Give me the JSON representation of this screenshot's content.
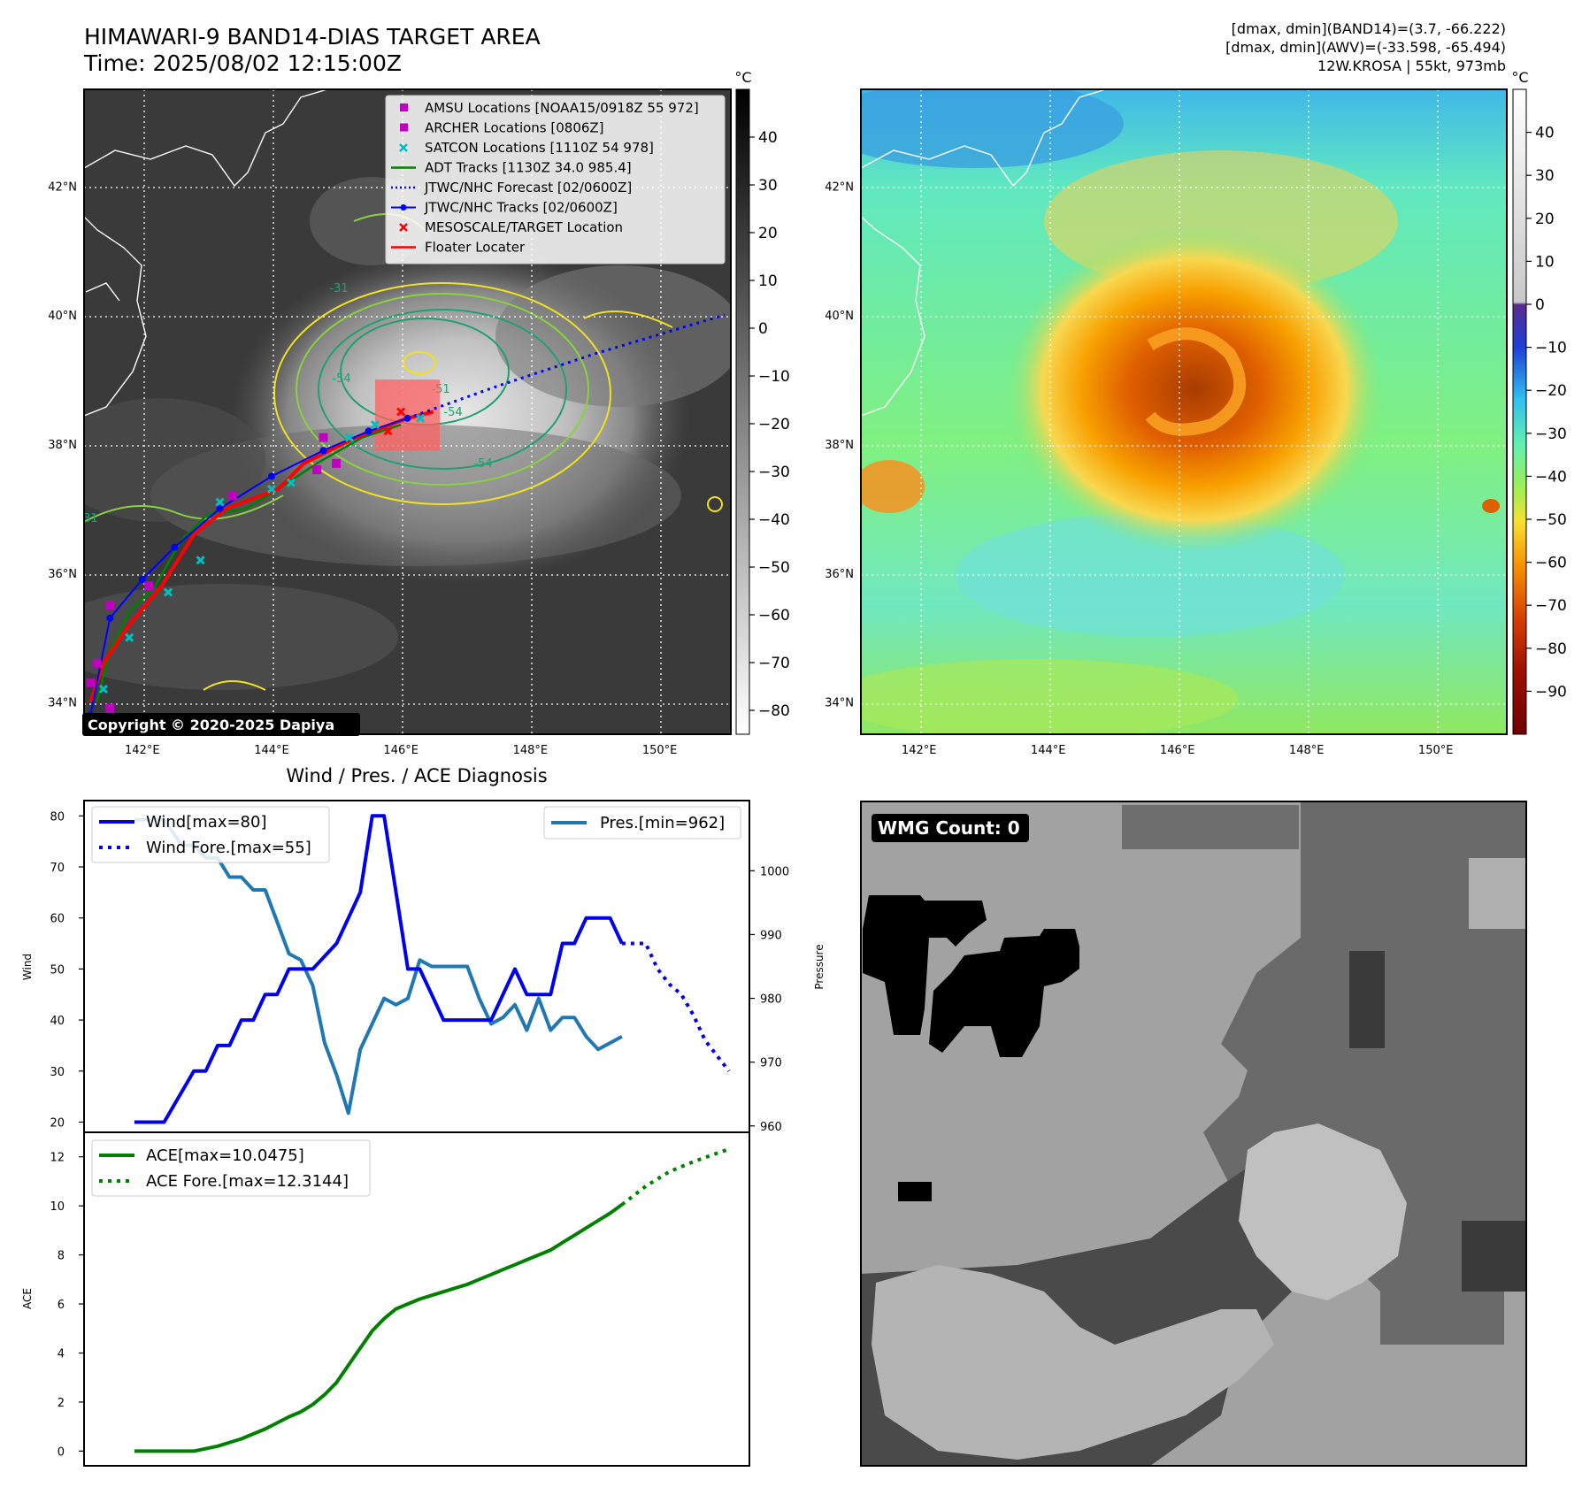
{
  "header": {
    "title_line1": "HIMAWARI-9 BAND14-DIAS TARGET AREA",
    "title_line2": "Time: 2025/08/02 12:15:00Z",
    "info_line1": "[dmax, dmin](BAND14)=(3.7, -66.222)",
    "info_line2": "[dmax, dmin](AWV)=(-33.598, -65.494)",
    "info_line3": "12W.KROSA | 55kt, 973mb"
  },
  "map_axes": {
    "lon_ticks": [
      "142°E",
      "144°E",
      "146°E",
      "148°E",
      "150°E"
    ],
    "lat_ticks": [
      "42°N",
      "40°N",
      "38°N",
      "36°N",
      "34°N"
    ],
    "lon_range": [
      141.1,
      151.1
    ],
    "lat_range": [
      33.5,
      43.5
    ],
    "grid": true
  },
  "ir_panel": {
    "copyright": "Copyright © 2020-2025 Dapiya",
    "colorbar_unit": "°C",
    "colorbar_ticks": [
      "40",
      "30",
      "20",
      "10",
      "0",
      "−10",
      "−20",
      "−30",
      "−40",
      "−50",
      "−60",
      "−70",
      "−80"
    ],
    "colorbar_range": [
      -85,
      50
    ],
    "contour_labels": [
      "-31",
      "-54",
      "-54",
      "-54",
      "-51",
      "-31"
    ],
    "legend": [
      {
        "label": "AMSU Locations [NOAA15/0918Z 55 972]",
        "color": "#c000c0",
        "marker": "square"
      },
      {
        "label": "ARCHER Locations [0806Z]",
        "color": "#c000c0",
        "marker": "square"
      },
      {
        "label": "SATCON Locations [1110Z 54 978]",
        "color": "#00bfbf",
        "marker": "x"
      },
      {
        "label": "ADT Tracks [1130Z 34.0 985.4]",
        "color": "#008000",
        "marker": "line"
      },
      {
        "label": "JTWC/NHC Forecast [02/0600Z]",
        "color": "#0000ff",
        "marker": "dotted"
      },
      {
        "label": "JTWC/NHC Tracks [02/0600Z]",
        "color": "#0000ff",
        "marker": "line-dot"
      },
      {
        "label": "MESOSCALE/TARGET Location",
        "color": "#ff0000",
        "marker": "x"
      },
      {
        "label": "Floater Locater",
        "color": "#ff0000",
        "marker": "line"
      }
    ],
    "jtwc_track": [
      [
        141.2,
        33.8
      ],
      [
        141.5,
        35.3
      ],
      [
        142.0,
        35.9
      ],
      [
        142.5,
        36.4
      ],
      [
        143.2,
        37.0
      ],
      [
        144.0,
        37.5
      ],
      [
        144.8,
        37.9
      ],
      [
        145.5,
        38.2
      ],
      [
        146.1,
        38.4
      ]
    ],
    "jtwc_forecast": [
      [
        146.1,
        38.4
      ],
      [
        147.5,
        38.9
      ],
      [
        149.0,
        39.4
      ],
      [
        151.0,
        40.0
      ]
    ],
    "adt_track": [
      [
        141.3,
        34.0
      ],
      [
        141.5,
        34.8
      ],
      [
        141.8,
        35.4
      ],
      [
        142.2,
        35.8
      ],
      [
        142.6,
        36.5
      ],
      [
        143.0,
        36.9
      ],
      [
        143.6,
        37.0
      ],
      [
        144.1,
        37.3
      ],
      [
        144.7,
        37.7
      ],
      [
        145.4,
        38.1
      ],
      [
        146.0,
        38.3
      ]
    ],
    "floater_track": [
      [
        141.2,
        34.0
      ],
      [
        141.4,
        34.6
      ],
      [
        141.8,
        35.2
      ],
      [
        142.3,
        35.8
      ],
      [
        142.8,
        36.6
      ],
      [
        143.3,
        37.0
      ],
      [
        144.1,
        37.3
      ],
      [
        144.5,
        37.7
      ],
      [
        145.3,
        38.1
      ],
      [
        146.1,
        38.4
      ],
      [
        146.5,
        38.5
      ]
    ],
    "amsu_points": [
      [
        141.2,
        34.3
      ],
      [
        141.5,
        35.5
      ],
      [
        142.1,
        35.8
      ],
      [
        143.4,
        37.2
      ],
      [
        144.7,
        37.6
      ],
      [
        145.0,
        37.7
      ],
      [
        144.8,
        38.1
      ],
      [
        141.5,
        33.9
      ],
      [
        141.3,
        34.6
      ]
    ],
    "satcon_points": [
      [
        141.4,
        34.2
      ],
      [
        141.8,
        35.0
      ],
      [
        142.4,
        35.7
      ],
      [
        142.9,
        36.2
      ],
      [
        143.2,
        37.1
      ],
      [
        144.0,
        37.3
      ],
      [
        144.3,
        37.4
      ],
      [
        145.2,
        38.1
      ],
      [
        145.6,
        38.3
      ],
      [
        146.3,
        38.4
      ],
      [
        141.3,
        33.7
      ]
    ],
    "target_points": [
      [
        146.0,
        38.5
      ],
      [
        145.8,
        38.2
      ]
    ],
    "target_box": {
      "lon": [
        145.6,
        146.6
      ],
      "lat": [
        37.9,
        39.0
      ]
    }
  },
  "awv_panel": {
    "colorbar_unit": "°C",
    "colorbar_ticks": [
      "40",
      "30",
      "20",
      "10",
      "0",
      "−10",
      "−20",
      "−30",
      "−40",
      "−50",
      "−60",
      "−70",
      "−80",
      "−90"
    ],
    "colorbar_range": [
      -100,
      50
    ]
  },
  "chart_data": [
    {
      "type": "line",
      "title": "Wind / Pres. / ACE Diagnosis",
      "ylabel": "Wind",
      "ylim": [
        18,
        83
      ],
      "yticks": [
        "20",
        "30",
        "40",
        "50",
        "60",
        "70",
        "80"
      ],
      "xlim": [
        -4,
        96
      ],
      "series": [
        {
          "name": "Wind[max=80]",
          "style": "solid",
          "color": "#0000ee",
          "x": [
            0,
            5,
            10,
            12,
            14,
            16,
            18,
            20,
            22,
            24,
            26,
            28,
            30,
            34,
            36,
            38,
            40,
            42,
            44,
            46,
            48,
            50,
            52,
            56,
            60,
            62,
            64,
            66,
            68,
            70,
            72,
            74,
            76,
            78,
            80,
            82
          ],
          "values": [
            20,
            20,
            30,
            30,
            35,
            35,
            40,
            40,
            45,
            45,
            50,
            50,
            50,
            55,
            60,
            65,
            80,
            80,
            65,
            50,
            50,
            45,
            40,
            40,
            40,
            45,
            50,
            45,
            45,
            45,
            55,
            55,
            60,
            60,
            60,
            55
          ]
        },
        {
          "name": "Wind Fore.[max=55]",
          "style": "dotted",
          "color": "#0000ee",
          "x": [
            82,
            86,
            88,
            90,
            92,
            94,
            96,
            100
          ],
          "values": [
            55,
            55,
            50,
            47,
            45,
            41,
            36,
            30
          ]
        }
      ],
      "right_axis": {
        "ylabel": "Pressure",
        "ylim": [
          959,
          1011
        ],
        "yticks": [
          "960",
          "970",
          "980",
          "990",
          "1000"
        ],
        "series": [
          {
            "name": "Pres.[min=962]",
            "style": "solid",
            "color": "#1f77b4",
            "x": [
              0,
              5,
              8,
              10,
              12,
              14,
              16,
              18,
              20,
              22,
              24,
              26,
              28,
              30,
              32,
              34,
              36,
              38,
              40,
              42,
              44,
              46,
              48,
              50,
              52,
              54,
              56,
              58,
              60,
              62,
              64,
              66,
              68,
              70,
              72,
              74,
              76,
              78,
              80,
              82
            ],
            "values": [
              1008,
              1008,
              1004,
              1004,
              1002,
              1002,
              999,
              999,
              997,
              997,
              992,
              987,
              986,
              982,
              973,
              968,
              962,
              972,
              976,
              980,
              979,
              980,
              986,
              985,
              985,
              985,
              985,
              980,
              976,
              977,
              979,
              975,
              980,
              975,
              977,
              977,
              974,
              972,
              973,
              974
            ]
          }
        ]
      }
    },
    {
      "type": "line",
      "ylabel": "ACE",
      "ylim": [
        -0.6,
        13
      ],
      "yticks": [
        "0",
        "2",
        "4",
        "6",
        "8",
        "10",
        "12"
      ],
      "xlim": [
        -4,
        96
      ],
      "series": [
        {
          "name": "ACE[max=10.0475]",
          "style": "solid",
          "color": "#008000",
          "x": [
            0,
            5,
            10,
            14,
            18,
            22,
            26,
            28,
            30,
            32,
            34,
            36,
            38,
            40,
            42,
            44,
            46,
            48,
            50,
            52,
            54,
            56,
            58,
            60,
            62,
            64,
            66,
            68,
            70,
            72,
            74,
            76,
            78,
            80,
            82
          ],
          "values": [
            0,
            0,
            0,
            0.2,
            0.5,
            0.9,
            1.4,
            1.6,
            1.9,
            2.3,
            2.8,
            3.5,
            4.2,
            4.9,
            5.4,
            5.8,
            6.0,
            6.2,
            6.35,
            6.5,
            6.65,
            6.8,
            7.0,
            7.2,
            7.4,
            7.6,
            7.8,
            8.0,
            8.2,
            8.5,
            8.8,
            9.1,
            9.4,
            9.7,
            10.05
          ]
        },
        {
          "name": "ACE Fore.[max=12.3144]",
          "style": "dotted",
          "color": "#008000",
          "x": [
            82,
            86,
            90,
            94,
            98,
            100
          ],
          "values": [
            10.05,
            10.8,
            11.4,
            11.8,
            12.15,
            12.31
          ]
        }
      ]
    }
  ],
  "wmg_panel": {
    "label": "WMG Count: 0"
  }
}
